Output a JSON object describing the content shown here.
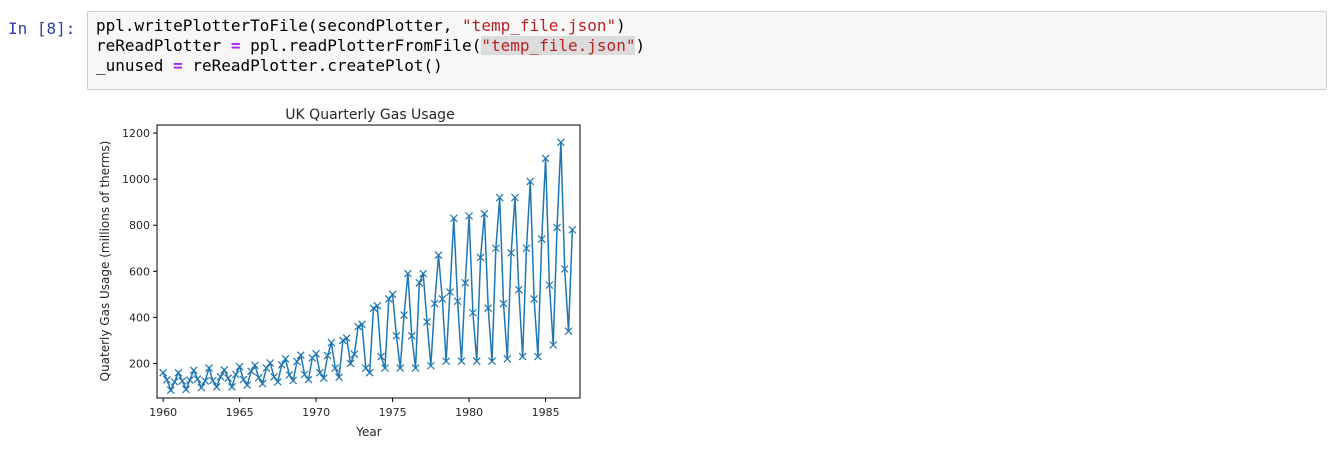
{
  "cell": {
    "prompt": "In [8]:",
    "lines": [
      {
        "pre": "ppl.writePlotterToFile(secondPlotter, ",
        "str": "\"temp_file.json\"",
        "post": ")"
      },
      {
        "pre": "reReadPlotter ",
        "op": "=",
        "mid": " ppl.readPlotterFromFile(",
        "str": "\"temp_file.json\"",
        "post": ")"
      },
      {
        "pre": "_unused ",
        "op": "=",
        "post": " reReadPlotter.createPlot()"
      }
    ]
  },
  "colors": {
    "line": "#1f77b4",
    "string": "#ba2121",
    "operator": "#aa22ff",
    "prompt": "#303f9f"
  },
  "chart_data": {
    "type": "line",
    "marker": "x",
    "title": "UK Quarterly Gas Usage",
    "xlabel": "Year",
    "ylabel": "Quaterly Gas Usage (millions of therms)",
    "xlim": [
      1959.6,
      1987.25
    ],
    "ylim": [
      50,
      1235
    ],
    "xticks": [
      1960,
      1965,
      1970,
      1975,
      1980,
      1985
    ],
    "yticks": [
      200,
      400,
      600,
      800,
      1000,
      1200
    ],
    "grid": false,
    "x": [
      1960,
      1960.25,
      1960.5,
      1960.75,
      1961,
      1961.25,
      1961.5,
      1961.75,
      1962,
      1962.25,
      1962.5,
      1962.75,
      1963,
      1963.25,
      1963.5,
      1963.75,
      1964,
      1964.25,
      1964.5,
      1964.75,
      1965,
      1965.25,
      1965.5,
      1965.75,
      1966,
      1966.25,
      1966.5,
      1966.75,
      1967,
      1967.25,
      1967.5,
      1967.75,
      1968,
      1968.25,
      1968.5,
      1968.75,
      1969,
      1969.25,
      1969.5,
      1969.75,
      1970,
      1970.25,
      1970.5,
      1970.75,
      1971,
      1971.25,
      1971.5,
      1971.75,
      1972,
      1972.25,
      1972.5,
      1972.75,
      1973,
      1973.25,
      1973.5,
      1973.75,
      1974,
      1974.25,
      1974.5,
      1974.75,
      1975,
      1975.25,
      1975.5,
      1975.75,
      1976,
      1976.25,
      1976.5,
      1976.75,
      1977,
      1977.25,
      1977.5,
      1977.75,
      1978,
      1978.25,
      1978.5,
      1978.75,
      1979,
      1979.25,
      1979.5,
      1979.75,
      1980,
      1980.25,
      1980.5,
      1980.75,
      1981,
      1981.25,
      1981.5,
      1981.75,
      1982,
      1982.25,
      1982.5,
      1982.75,
      1983,
      1983.25,
      1983.5,
      1983.75,
      1984,
      1984.25,
      1984.5,
      1984.75,
      1985,
      1985.25,
      1985.5,
      1985.75,
      1986,
      1986.25,
      1986.5,
      1986.75
    ],
    "series": [
      {
        "values": [
          160,
          129,
          84,
          120,
          160,
          124,
          87,
          128,
          170,
          132,
          95,
          124,
          180,
          126,
          98,
          142,
          172,
          136,
          98,
          152,
          186,
          130,
          106,
          166,
          192,
          138,
          112,
          180,
          202,
          142,
          120,
          194,
          220,
          150,
          126,
          208,
          236,
          152,
          130,
          224,
          242,
          160,
          136,
          234,
          290,
          180,
          140,
          300,
          310,
          200,
          240,
          360,
          370,
          180,
          160,
          440,
          450,
          230,
          180,
          480,
          500,
          320,
          180,
          410,
          590,
          320,
          180,
          550,
          590,
          380,
          190,
          460,
          670,
          480,
          210,
          510,
          830,
          470,
          210,
          550,
          840,
          420,
          210,
          660,
          850,
          440,
          210,
          700,
          920,
          460,
          220,
          680,
          920,
          520,
          230,
          700,
          990,
          480,
          230,
          740,
          1090,
          540,
          280,
          790,
          1160,
          610,
          340,
          780
        ]
      }
    ]
  }
}
